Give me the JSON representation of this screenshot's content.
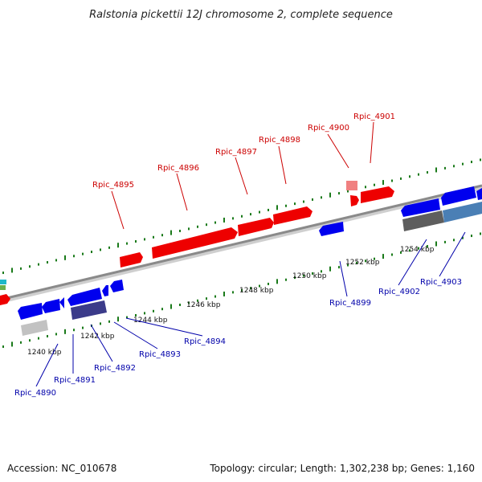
{
  "title": "Ralstonia pickettii 12J chromosome 2, complete sequence",
  "footer": {
    "accession": "Accession: NC_010678",
    "summary": "Topology: circular; Length: 1,302,238 bp; Genes: 1,160"
  },
  "colors": {
    "forward_gene": "#ee0000",
    "reverse_gene": "#0000ee",
    "forward_label": "#cc0000",
    "reverse_label": "#0000aa",
    "backbone": "#8a8a8a",
    "tick": "#1a7a1a"
  },
  "scale_labels": [
    "1240 kbp",
    "1242 kbp",
    "1244 kbp",
    "1246 kbp",
    "1248 kbp",
    "1250 kbp",
    "1252 kbp",
    "1254 kbp"
  ],
  "forward_genes": [
    "Rpic_4895",
    "Rpic_4896",
    "Rpic_4897",
    "Rpic_4898",
    "Rpic_4900",
    "Rpic_4901"
  ],
  "reverse_genes": [
    "Rpic_4890",
    "Rpic_4891",
    "Rpic_4892",
    "Rpic_4893",
    "Rpic_4894",
    "Rpic_4899",
    "Rpic_4902",
    "Rpic_4903"
  ]
}
